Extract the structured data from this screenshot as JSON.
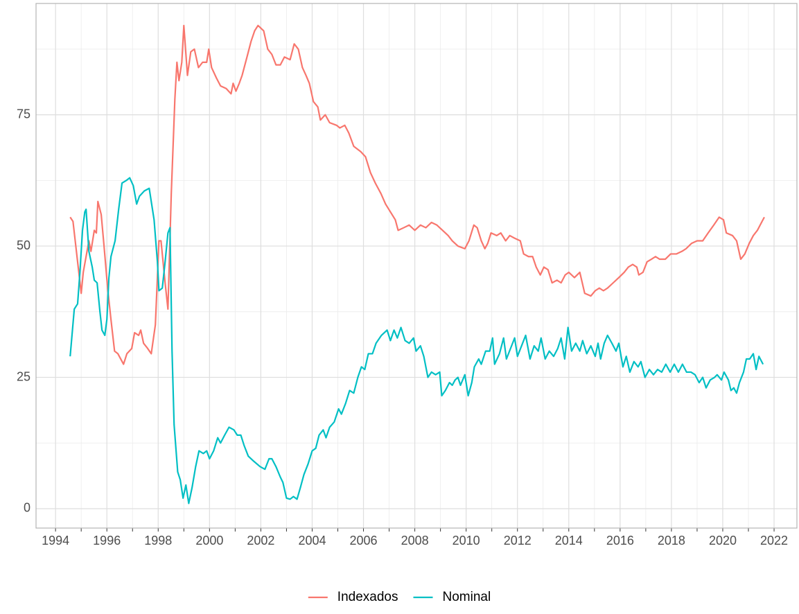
{
  "chart_data": {
    "type": "line",
    "xlim": [
      1993.24,
      2022.89
    ],
    "ylim": [
      -3.7,
      96.2
    ],
    "xticks": [
      1994,
      1996,
      1998,
      2000,
      2002,
      2004,
      2006,
      2008,
      2010,
      2012,
      2014,
      2016,
      2018,
      2020,
      2022
    ],
    "yticks": [
      0,
      25,
      50,
      75
    ],
    "x_minor_grid": [
      1995,
      1997,
      1999,
      2001,
      2003,
      2005,
      2007,
      2009,
      2011,
      2013,
      2015,
      2017,
      2019,
      2021
    ],
    "y_minor_grid": [
      12.5,
      37.5,
      62.5,
      87.5
    ],
    "grid": true,
    "legend": "bottom",
    "series": [
      {
        "name": "Indexados",
        "color": "#F8766D",
        "x": [
          1994.57,
          1994.68,
          1995.0,
          1995.08,
          1995.3,
          1995.38,
          1995.51,
          1995.59,
          1995.65,
          1995.78,
          1995.89,
          1996.03,
          1996.16,
          1996.3,
          1996.43,
          1996.65,
          1996.78,
          1996.97,
          1997.08,
          1997.24,
          1997.32,
          1997.43,
          1997.59,
          1997.73,
          1997.89,
          1998.03,
          1998.11,
          1998.27,
          1998.38,
          1998.51,
          1998.65,
          1998.73,
          1998.81,
          1998.92,
          1999.0,
          1999.14,
          1999.27,
          1999.41,
          1999.57,
          1999.73,
          1999.89,
          1999.97,
          2000.08,
          2000.27,
          2000.43,
          2000.65,
          2000.84,
          2000.92,
          2001.03,
          2001.16,
          2001.27,
          2001.46,
          2001.62,
          2001.76,
          2001.89,
          2002.11,
          2002.27,
          2002.43,
          2002.59,
          2002.76,
          2002.92,
          2003.14,
          2003.3,
          2003.46,
          2003.62,
          2003.76,
          2003.89,
          2004.05,
          2004.22,
          2004.32,
          2004.51,
          2004.68,
          2004.95,
          2005.08,
          2005.27,
          2005.43,
          2005.62,
          2005.89,
          2006.08,
          2006.27,
          2006.46,
          2006.68,
          2006.86,
          2007.05,
          2007.24,
          2007.35,
          2007.57,
          2007.78,
          2008.0,
          2008.22,
          2008.43,
          2008.65,
          2008.86,
          2009.08,
          2009.3,
          2009.46,
          2009.68,
          2009.95,
          2010.11,
          2010.3,
          2010.43,
          2010.59,
          2010.73,
          2010.84,
          2010.97,
          2011.19,
          2011.35,
          2011.54,
          2011.7,
          2011.89,
          2012.11,
          2012.24,
          2012.43,
          2012.59,
          2012.73,
          2012.89,
          2013.03,
          2013.19,
          2013.35,
          2013.54,
          2013.7,
          2013.86,
          2014.0,
          2014.22,
          2014.43,
          2014.62,
          2014.86,
          2015.03,
          2015.19,
          2015.35,
          2015.51,
          2015.73,
          2015.95,
          2016.16,
          2016.32,
          2016.49,
          2016.65,
          2016.73,
          2016.89,
          2017.05,
          2017.22,
          2017.38,
          2017.54,
          2017.76,
          2017.97,
          2018.19,
          2018.41,
          2018.57,
          2018.78,
          2019.0,
          2019.22,
          2019.43,
          2019.65,
          2019.86,
          2020.03,
          2020.14,
          2020.38,
          2020.54,
          2020.7,
          2020.86,
          2021.03,
          2021.19,
          2021.35,
          2021.51,
          2021.62
        ],
        "values": [
          55.5,
          54.7,
          41,
          45,
          51,
          49,
          53,
          52.5,
          58.5,
          56,
          50,
          42,
          36,
          30,
          29.5,
          27.5,
          29.5,
          30.5,
          33.5,
          33,
          34,
          31.5,
          30.5,
          29.5,
          35,
          51,
          51,
          43,
          38,
          60,
          78,
          85,
          81.5,
          85,
          92,
          82.5,
          87,
          87.5,
          84,
          85,
          85,
          87.5,
          84,
          82,
          80.5,
          80,
          79,
          81,
          79.5,
          81,
          82.5,
          86,
          89,
          91,
          92,
          91,
          87.5,
          86.5,
          84.5,
          84.5,
          86,
          85.5,
          88.5,
          87.5,
          84,
          82.5,
          81,
          77.5,
          76.5,
          74,
          75,
          73.5,
          73,
          72.5,
          73,
          71.5,
          69,
          68,
          67,
          64,
          62,
          60,
          58,
          56.5,
          55,
          53,
          53.5,
          54,
          53,
          54,
          53.5,
          54.5,
          54,
          53,
          52,
          51,
          50,
          49.5,
          51,
          54,
          53.5,
          51,
          49.5,
          50.5,
          52.5,
          52,
          52.5,
          51,
          52,
          51.5,
          51,
          48.5,
          48,
          48,
          46,
          44.5,
          46,
          45.5,
          43,
          43.5,
          43,
          44.5,
          45,
          44,
          45,
          41,
          40.5,
          41.5,
          42,
          41.5,
          42,
          43,
          44,
          45,
          46,
          46.5,
          46,
          44.5,
          45,
          47,
          47.5,
          48,
          47.5,
          47.5,
          48.5,
          48.5,
          49,
          49.5,
          50.5,
          51,
          51,
          52.5,
          54,
          55.5,
          55,
          52.5,
          52,
          51,
          47.5,
          48.5,
          50.5,
          52,
          53,
          54.5,
          55.5
        ]
      },
      {
        "name": "Nominal",
        "color": "#00BFC4",
        "x": [
          1994.57,
          1994.73,
          1994.86,
          1994.95,
          1995.05,
          1995.14,
          1995.19,
          1995.3,
          1995.43,
          1995.51,
          1995.62,
          1995.73,
          1995.81,
          1995.92,
          1996.0,
          1996.08,
          1996.16,
          1996.32,
          1996.46,
          1996.59,
          1996.76,
          1996.89,
          1997.03,
          1997.16,
          1997.27,
          1997.46,
          1997.65,
          1997.84,
          1997.97,
          1998.03,
          1998.16,
          1998.27,
          1998.38,
          1998.46,
          1998.54,
          1998.62,
          1998.76,
          1998.86,
          1998.97,
          1999.08,
          1999.19,
          1999.32,
          1999.46,
          1999.59,
          1999.76,
          1999.89,
          2000.0,
          2000.16,
          2000.32,
          2000.43,
          2000.59,
          2000.76,
          2000.95,
          2001.08,
          2001.22,
          2001.35,
          2001.51,
          2001.73,
          2001.97,
          2002.16,
          2002.32,
          2002.43,
          2002.59,
          2002.76,
          2002.86,
          2003.0,
          2003.14,
          2003.27,
          2003.41,
          2003.54,
          2003.68,
          2003.84,
          2004.0,
          2004.14,
          2004.27,
          2004.43,
          2004.54,
          2004.68,
          2004.86,
          2005.03,
          2005.14,
          2005.3,
          2005.46,
          2005.62,
          2005.78,
          2005.92,
          2006.05,
          2006.19,
          2006.35,
          2006.49,
          2006.7,
          2006.92,
          2007.05,
          2007.19,
          2007.32,
          2007.46,
          2007.62,
          2007.78,
          2007.95,
          2008.05,
          2008.22,
          2008.35,
          2008.51,
          2008.65,
          2008.81,
          2008.97,
          2009.05,
          2009.19,
          2009.35,
          2009.46,
          2009.57,
          2009.68,
          2009.78,
          2009.95,
          2010.08,
          2010.22,
          2010.32,
          2010.49,
          2010.59,
          2010.76,
          2010.92,
          2011.03,
          2011.11,
          2011.3,
          2011.46,
          2011.57,
          2011.73,
          2011.89,
          2012.0,
          2012.16,
          2012.32,
          2012.49,
          2012.65,
          2012.81,
          2012.92,
          2013.08,
          2013.24,
          2013.41,
          2013.57,
          2013.7,
          2013.84,
          2013.97,
          2014.11,
          2014.27,
          2014.43,
          2014.54,
          2014.7,
          2014.86,
          2015.03,
          2015.14,
          2015.24,
          2015.38,
          2015.51,
          2015.68,
          2015.84,
          2015.95,
          2016.11,
          2016.24,
          2016.38,
          2016.54,
          2016.7,
          2016.81,
          2016.97,
          2017.14,
          2017.3,
          2017.46,
          2017.62,
          2017.78,
          2017.95,
          2018.11,
          2018.27,
          2018.43,
          2018.59,
          2018.76,
          2018.92,
          2019.08,
          2019.22,
          2019.35,
          2019.51,
          2019.68,
          2019.78,
          2019.95,
          2020.05,
          2020.22,
          2020.32,
          2020.43,
          2020.54,
          2020.65,
          2020.81,
          2020.92,
          2021.05,
          2021.19,
          2021.3,
          2021.41,
          2021.57
        ],
        "values": [
          29,
          38,
          39,
          45,
          53,
          56.5,
          57,
          49,
          46,
          43.5,
          43,
          37.5,
          34,
          33,
          36,
          44,
          48,
          51,
          57,
          62,
          62.5,
          63,
          61.5,
          58,
          59.5,
          60.5,
          61,
          55,
          47,
          41.5,
          42,
          47,
          52.5,
          53.5,
          30,
          16,
          7,
          5.5,
          2,
          4.5,
          1,
          4,
          8,
          11,
          10.5,
          11,
          9.5,
          11,
          13.5,
          12.5,
          14,
          15.5,
          15,
          14,
          14,
          12,
          10,
          9,
          8,
          7.5,
          9.5,
          9.5,
          8,
          6,
          5,
          2,
          1.8,
          2.3,
          1.8,
          4,
          6.5,
          8.5,
          11,
          11.5,
          14,
          15,
          13.5,
          15.5,
          16.5,
          19,
          18,
          20,
          22.5,
          22,
          25,
          27,
          26.5,
          29.5,
          29.5,
          31.5,
          33,
          34,
          32,
          34,
          32.5,
          34.5,
          32,
          31.5,
          32.5,
          30,
          31,
          29,
          25,
          26,
          25.5,
          26,
          21.5,
          22.5,
          24,
          23.5,
          24.5,
          25,
          23.5,
          25.5,
          21.5,
          24,
          27,
          28.5,
          27.5,
          30,
          30,
          32.5,
          27.5,
          29.5,
          32.5,
          28.5,
          30.5,
          32.5,
          29,
          31,
          33,
          28.5,
          31,
          30,
          32.5,
          28.5,
          30,
          29,
          30.5,
          32.5,
          28.5,
          34.5,
          30,
          31.5,
          30,
          32,
          29.5,
          31,
          29,
          31.5,
          28.5,
          31.5,
          33,
          31.5,
          30,
          31.5,
          27,
          29,
          26,
          28,
          27,
          28,
          25,
          26.5,
          25.5,
          26.5,
          26,
          27.5,
          26,
          27.5,
          26,
          27.5,
          26,
          26,
          25.5,
          24,
          25,
          23,
          24.5,
          25,
          25.5,
          24.5,
          26,
          24.5,
          22.5,
          23,
          22,
          24,
          26,
          28.5,
          28.5,
          29.5,
          26.5,
          29,
          27.5
        ]
      }
    ]
  }
}
